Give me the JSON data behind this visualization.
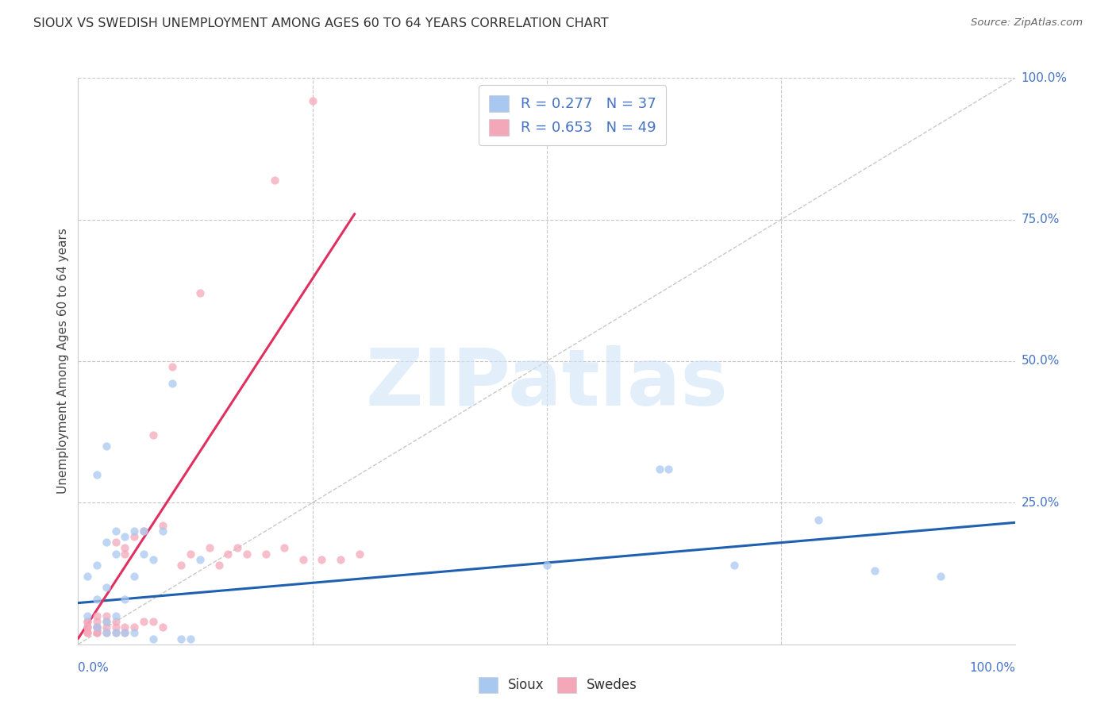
{
  "title": "SIOUX VS SWEDISH UNEMPLOYMENT AMONG AGES 60 TO 64 YEARS CORRELATION CHART",
  "source": "Source: ZipAtlas.com",
  "ylabel": "Unemployment Among Ages 60 to 64 years",
  "xlim": [
    0,
    1.0
  ],
  "ylim": [
    0,
    1.0
  ],
  "x_left_label": "0.0%",
  "x_right_label": "100.0%",
  "yticks": [
    0.0,
    0.25,
    0.5,
    0.75,
    1.0
  ],
  "yticklabels": [
    "",
    "25.0%",
    "50.0%",
    "75.0%",
    "100.0%"
  ],
  "sioux_color": "#A8C8F0",
  "swedes_color": "#F4A7B9",
  "sioux_line_color": "#2060B0",
  "swedes_line_color": "#E03060",
  "diagonal_color": "#C8C8C8",
  "R_sioux": 0.277,
  "N_sioux": 37,
  "R_swedes": 0.653,
  "N_swedes": 49,
  "background_color": "#FFFFFF",
  "sioux_scatter_x": [
    0.01,
    0.01,
    0.02,
    0.02,
    0.02,
    0.02,
    0.03,
    0.03,
    0.03,
    0.03,
    0.03,
    0.04,
    0.04,
    0.04,
    0.04,
    0.05,
    0.05,
    0.05,
    0.06,
    0.06,
    0.06,
    0.07,
    0.07,
    0.08,
    0.08,
    0.09,
    0.1,
    0.11,
    0.12,
    0.13,
    0.5,
    0.62,
    0.63,
    0.7,
    0.79,
    0.85,
    0.92
  ],
  "sioux_scatter_y": [
    0.05,
    0.12,
    0.03,
    0.08,
    0.14,
    0.3,
    0.02,
    0.04,
    0.1,
    0.18,
    0.35,
    0.02,
    0.05,
    0.16,
    0.2,
    0.02,
    0.08,
    0.19,
    0.02,
    0.12,
    0.2,
    0.16,
    0.2,
    0.01,
    0.15,
    0.2,
    0.46,
    0.01,
    0.01,
    0.15,
    0.14,
    0.31,
    0.31,
    0.14,
    0.22,
    0.13,
    0.12
  ],
  "swedes_scatter_x": [
    0.01,
    0.01,
    0.01,
    0.01,
    0.01,
    0.01,
    0.02,
    0.02,
    0.02,
    0.02,
    0.02,
    0.02,
    0.03,
    0.03,
    0.03,
    0.03,
    0.04,
    0.04,
    0.04,
    0.04,
    0.05,
    0.05,
    0.05,
    0.05,
    0.06,
    0.06,
    0.07,
    0.07,
    0.08,
    0.08,
    0.09,
    0.09,
    0.1,
    0.11,
    0.12,
    0.13,
    0.14,
    0.15,
    0.16,
    0.17,
    0.18,
    0.2,
    0.21,
    0.22,
    0.24,
    0.25,
    0.26,
    0.28,
    0.3
  ],
  "swedes_scatter_y": [
    0.02,
    0.02,
    0.03,
    0.03,
    0.04,
    0.04,
    0.02,
    0.02,
    0.03,
    0.03,
    0.04,
    0.05,
    0.02,
    0.03,
    0.04,
    0.05,
    0.02,
    0.03,
    0.04,
    0.18,
    0.02,
    0.03,
    0.16,
    0.17,
    0.03,
    0.19,
    0.04,
    0.2,
    0.04,
    0.37,
    0.03,
    0.21,
    0.49,
    0.14,
    0.16,
    0.62,
    0.17,
    0.14,
    0.16,
    0.17,
    0.16,
    0.16,
    0.82,
    0.17,
    0.15,
    0.96,
    0.15,
    0.15,
    0.16
  ],
  "sioux_trend_x0": 0.0,
  "sioux_trend_y0": 0.073,
  "sioux_trend_x1": 1.0,
  "sioux_trend_y1": 0.215,
  "swedes_trend_x0": 0.0,
  "swedes_trend_y0": 0.01,
  "swedes_trend_x1": 0.295,
  "swedes_trend_y1": 0.76
}
